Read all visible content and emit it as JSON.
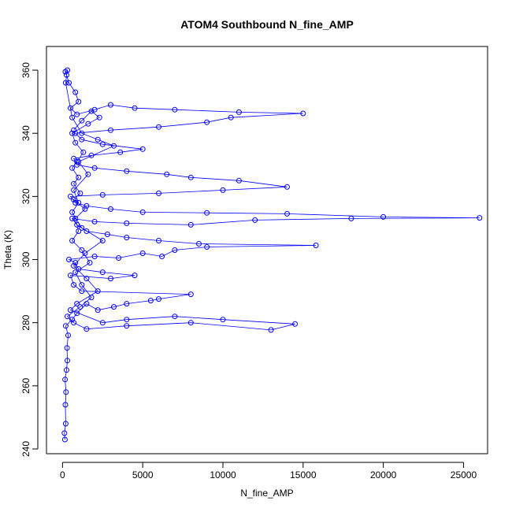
{
  "chart_data": {
    "type": "scatter",
    "title": "ATOM4 Southbound N_fine_AMP",
    "xlabel": "N_fine_AMP",
    "ylabel": "Theta (K)",
    "xlim": [
      -1000,
      26500
    ],
    "ylim": [
      238.5,
      367.5
    ],
    "x_ticks": [
      0,
      5000,
      10000,
      15000,
      20000,
      25000
    ],
    "y_ticks": [
      240,
      260,
      280,
      300,
      320,
      340,
      360
    ],
    "grid": false,
    "legend": "none",
    "connected": true,
    "marker": "open-circle",
    "series_color": "#0000ff",
    "points": [
      [
        150,
        243
      ],
      [
        120,
        245
      ],
      [
        200,
        248
      ],
      [
        180,
        254
      ],
      [
        220,
        258
      ],
      [
        160,
        262
      ],
      [
        250,
        265
      ],
      [
        300,
        268
      ],
      [
        280,
        272
      ],
      [
        350,
        276
      ],
      [
        200,
        279
      ],
      [
        600,
        281
      ],
      [
        900,
        283
      ],
      [
        1500,
        286
      ],
      [
        2200,
        284
      ],
      [
        3200,
        285
      ],
      [
        4000,
        286
      ],
      [
        5500,
        287
      ],
      [
        6000,
        287.5
      ],
      [
        8000,
        289
      ],
      [
        1200,
        290
      ],
      [
        700,
        292
      ],
      [
        500,
        295
      ],
      [
        3000,
        294
      ],
      [
        4500,
        295
      ],
      [
        2500,
        296
      ],
      [
        1000,
        297
      ],
      [
        800,
        299
      ],
      [
        400,
        300
      ],
      [
        2000,
        301
      ],
      [
        3500,
        300.5
      ],
      [
        5000,
        302
      ],
      [
        6200,
        301
      ],
      [
        7000,
        303
      ],
      [
        9000,
        304
      ],
      [
        15800,
        304.5
      ],
      [
        8500,
        305
      ],
      [
        6000,
        306
      ],
      [
        4000,
        307
      ],
      [
        2800,
        308
      ],
      [
        1500,
        309
      ],
      [
        900,
        311
      ],
      [
        600,
        313
      ],
      [
        2000,
        312
      ],
      [
        4000,
        311.5
      ],
      [
        8000,
        311
      ],
      [
        12000,
        312.5
      ],
      [
        18000,
        313
      ],
      [
        26000,
        313.2
      ],
      [
        20000,
        313.5
      ],
      [
        14000,
        314.5
      ],
      [
        9000,
        314.8
      ],
      [
        5000,
        315
      ],
      [
        3000,
        316
      ],
      [
        1500,
        317
      ],
      [
        800,
        318
      ],
      [
        500,
        320
      ],
      [
        2500,
        320.5
      ],
      [
        6000,
        321
      ],
      [
        10000,
        322
      ],
      [
        14000,
        323
      ],
      [
        11000,
        325
      ],
      [
        8000,
        326
      ],
      [
        6500,
        327
      ],
      [
        4000,
        328
      ],
      [
        2000,
        329
      ],
      [
        900,
        330
      ],
      [
        700,
        332
      ],
      [
        1800,
        333
      ],
      [
        3600,
        334
      ],
      [
        5000,
        335
      ],
      [
        2500,
        336.5
      ],
      [
        1200,
        338
      ],
      [
        800,
        340
      ],
      [
        3000,
        341
      ],
      [
        6000,
        342
      ],
      [
        9000,
        343.5
      ],
      [
        10500,
        345
      ],
      [
        15000,
        346.3
      ],
      [
        11000,
        346.7
      ],
      [
        7000,
        347.5
      ],
      [
        4500,
        348
      ],
      [
        3000,
        349
      ],
      [
        2000,
        347.5
      ],
      [
        900,
        346
      ],
      [
        500,
        348
      ],
      [
        1000,
        350
      ],
      [
        800,
        353
      ],
      [
        400,
        356
      ],
      [
        250,
        358.5
      ],
      [
        180,
        359.5
      ],
      [
        300,
        360
      ],
      [
        200,
        356
      ],
      [
        600,
        345
      ],
      [
        1200,
        340
      ],
      [
        2200,
        338
      ],
      [
        3200,
        336
      ],
      [
        1000,
        331
      ],
      [
        1600,
        327
      ],
      [
        700,
        322
      ],
      [
        1000,
        318
      ],
      [
        600,
        315
      ],
      [
        1200,
        310
      ],
      [
        2500,
        306
      ],
      [
        1400,
        302
      ],
      [
        700,
        298
      ],
      [
        1500,
        294
      ],
      [
        2200,
        290
      ],
      [
        900,
        286
      ],
      [
        500,
        284
      ],
      [
        2500,
        280
      ],
      [
        4000,
        281
      ],
      [
        7000,
        282
      ],
      [
        10000,
        281
      ],
      [
        14500,
        279.6
      ],
      [
        13000,
        277.7
      ],
      [
        8000,
        280
      ],
      [
        4000,
        279
      ],
      [
        1500,
        278
      ],
      [
        700,
        280
      ],
      [
        300,
        282
      ],
      [
        1100,
        285
      ],
      [
        1800,
        288
      ],
      [
        1200,
        292
      ],
      [
        800,
        296
      ],
      [
        1700,
        299
      ],
      [
        1200,
        303
      ],
      [
        600,
        306
      ],
      [
        1000,
        309
      ],
      [
        800,
        313
      ],
      [
        1400,
        316
      ],
      [
        700,
        319
      ],
      [
        1100,
        321
      ],
      [
        700,
        324
      ],
      [
        1000,
        326
      ],
      [
        600,
        329
      ],
      [
        900,
        331
      ],
      [
        1300,
        334
      ],
      [
        800,
        337
      ],
      [
        600,
        340
      ],
      [
        1600,
        343
      ],
      [
        2300,
        345
      ],
      [
        1800,
        347
      ],
      [
        1200,
        344
      ],
      [
        700,
        341
      ]
    ]
  }
}
